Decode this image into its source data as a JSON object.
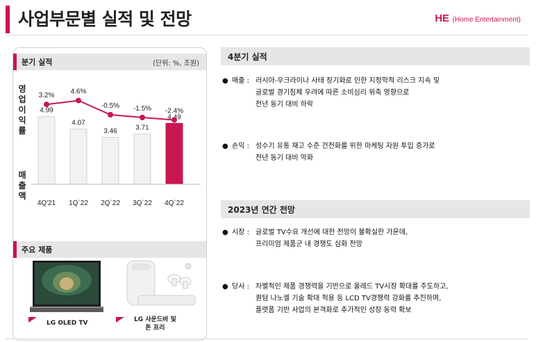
{
  "page": {
    "title": "사업부문별 실적 및 전망",
    "he_badge": "HE",
    "he_badge_sub": "(Home Entertainment)"
  },
  "colors": {
    "accent": "#c8174f",
    "bar_gray": "#f2f2f2",
    "bar_accent": "#c8174f",
    "line": "#c8174f"
  },
  "left": {
    "quarter_section": {
      "title": "분기 실적",
      "unit": "(단위: %, 조원)"
    },
    "op_label": "영업이익률",
    "sales_label": "매출액",
    "products_section": {
      "title": "주요 제품"
    },
    "products": [
      {
        "name": "LG OLED TV"
      },
      {
        "name_line1": "LG 사운드바 및",
        "name_line2": "톤 프리"
      }
    ]
  },
  "chart_data": {
    "type": "bar",
    "categories": [
      "4Q'21",
      "1Q'22",
      "2Q'22",
      "3Q'22",
      "4Q'22"
    ],
    "category_labels": [
      "4Q'21",
      "1Q`22",
      "2Q`22",
      "3Q`22",
      "4Q`22"
    ],
    "series": [
      {
        "values": [
          4.99,
          4.07,
          3.46,
          3.71,
          4.49
        ],
        "labels": [
          "4.99",
          "4.07",
          "3.46",
          "3.71",
          "4.49"
        ]
      },
      {
        "type": "line",
        "values": [
          3.2,
          4.6,
          -0.5,
          -1.5,
          -2.4
        ],
        "labels": [
          "3.2%",
          "4.6%",
          "-0.5%",
          "-1.5%",
          "-2.4%"
        ]
      }
    ],
    "title": "",
    "xlabel": "",
    "ylabel": "",
    "highlight_index": 4
  },
  "right": {
    "q4_section": {
      "title": "4분기 실적"
    },
    "q4_items": [
      {
        "key": "매출 :",
        "lines": [
          "러시아-우크라이나 사태 장기화로 인한 지정학적 리스크 지속 및",
          "글로벌 경기침체 우려에 따른 소비심리 위축 영향으로",
          "전년 동기 대비 하락"
        ]
      },
      {
        "key": "손익 :",
        "lines": [
          "성수기 유통 재고 수준 건전화를 위한 마케팅 자원 투입 증가로",
          "전년 동기 대비 악화"
        ]
      }
    ],
    "outlook_section": {
      "title": "2023년 연간 전망"
    },
    "outlook_items": [
      {
        "key": "시장 :",
        "lines": [
          "글로벌 TV수요 개선에 대한 전망이 불확실한 가운데,",
          "프리미엄 제품군 내 경쟁도 심화 전망"
        ]
      },
      {
        "key": "당사 :",
        "lines": [
          "차별적인 제품 경쟁력을 기반으로 올레드 TV시장 확대를 주도하고,",
          "퀀텀 나노셀 기술 확대 적용 등 LCD TV경쟁력  강화를 추진하며,",
          "플랫폼 기반 사업의 본격화로 추가적인 성장 동력 확보"
        ]
      }
    ]
  }
}
